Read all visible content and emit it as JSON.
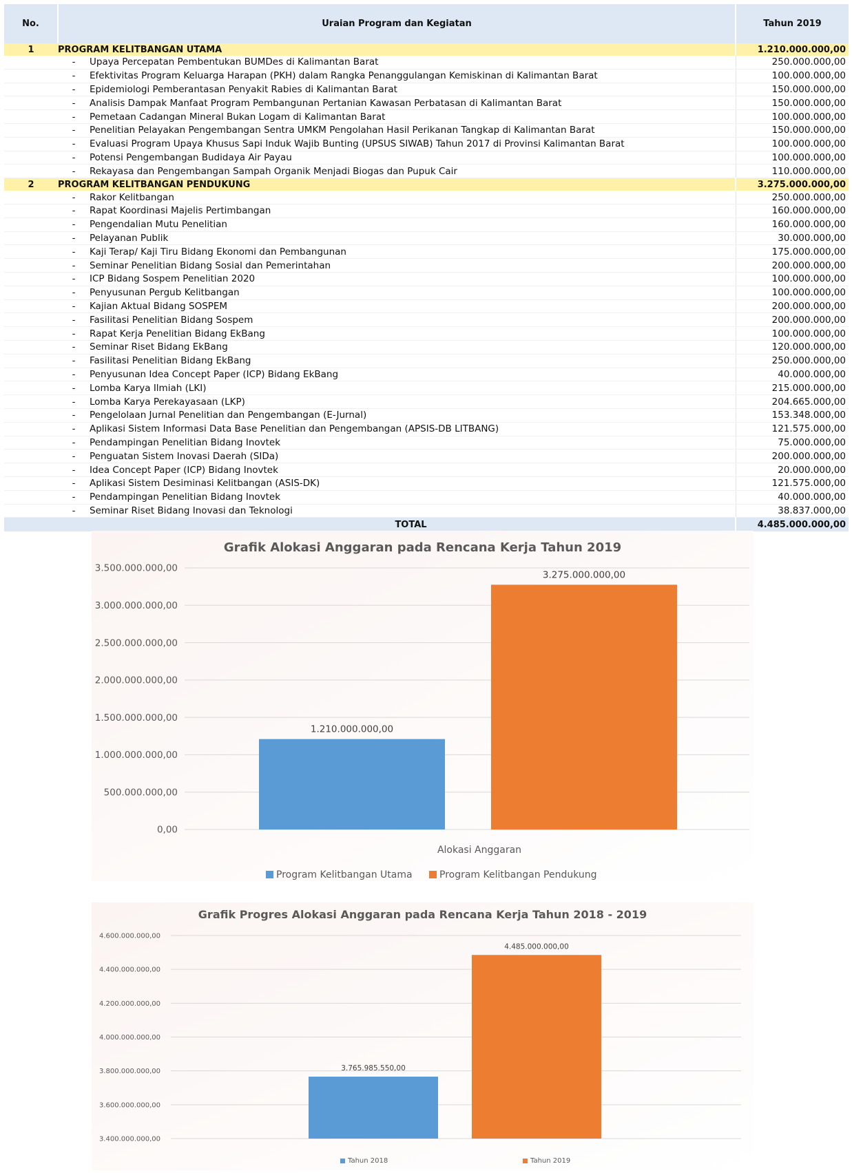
{
  "table": {
    "headers": {
      "no": "No.",
      "desc": "Uraian Program dan Kegiatan",
      "amount": "Tahun 2019"
    },
    "programs": [
      {
        "no": "1",
        "name": "PROGRAM KELITBANGAN UTAMA",
        "amount": "1.210.000.000,00",
        "items": [
          {
            "desc": "Upaya Percepatan Pembentukan BUMDes di Kalimantan Barat",
            "amount": "250.000.000,00"
          },
          {
            "desc": "Efektivitas Program Keluarga Harapan (PKH) dalam Rangka Penanggulangan Kemiskinan di Kalimantan Barat",
            "amount": "100.000.000,00"
          },
          {
            "desc": "Epidemiologi Pemberantasan Penyakit Rabies di Kalimantan Barat",
            "amount": "150.000.000,00"
          },
          {
            "desc": "Analisis Dampak Manfaat Program Pembangunan Pertanian Kawasan Perbatasan di Kalimantan Barat",
            "amount": "150.000.000,00"
          },
          {
            "desc": "Pemetaan Cadangan Mineral Bukan Logam di Kalimantan Barat",
            "amount": "100.000.000,00"
          },
          {
            "desc": "Penelitian Pelayakan Pengembangan Sentra UMKM Pengolahan Hasil Perikanan Tangkap di Kalimantan Barat",
            "amount": "150.000.000,00"
          },
          {
            "desc": "Evaluasi Program Upaya Khusus Sapi Induk Wajib Bunting (UPSUS SIWAB) Tahun 2017 di Provinsi Kalimantan Barat",
            "amount": "100.000.000,00"
          },
          {
            "desc": "Potensi Pengembangan Budidaya Air Payau",
            "amount": "100.000.000,00"
          },
          {
            "desc": "Rekayasa dan Pengembangan Sampah Organik Menjadi Biogas dan Pupuk Cair",
            "amount": "110.000.000,00"
          }
        ]
      },
      {
        "no": "2",
        "name": "PROGRAM KELITBANGAN PENDUKUNG",
        "amount": "3.275.000.000,00",
        "items": [
          {
            "desc": "Rakor Kelitbangan",
            "amount": "250.000.000,00"
          },
          {
            "desc": "Rapat Koordinasi Majelis Pertimbangan",
            "amount": "160.000.000,00"
          },
          {
            "desc": "Pengendalian Mutu Penelitian",
            "amount": "160.000.000,00"
          },
          {
            "desc": "Pelayanan Publik",
            "amount": "30.000.000,00"
          },
          {
            "desc": "Kaji Terap/ Kaji Tiru Bidang Ekonomi dan Pembangunan",
            "amount": "175.000.000,00"
          },
          {
            "desc": "Seminar Penelitian Bidang Sosial dan Pemerintahan",
            "amount": "200.000.000,00"
          },
          {
            "desc": "ICP Bidang Sospem Penelitian 2020",
            "amount": "100.000.000,00"
          },
          {
            "desc": "Penyusunan Pergub Kelitbangan",
            "amount": "100.000.000,00"
          },
          {
            "desc": "Kajian Aktual Bidang SOSPEM",
            "amount": "200.000.000,00"
          },
          {
            "desc": "Fasilitasi Penelitian Bidang Sospem",
            "amount": "200.000.000,00"
          },
          {
            "desc": "Rapat Kerja Penelitian Bidang EkBang",
            "amount": "100.000.000,00"
          },
          {
            "desc": "Seminar Riset Bidang EkBang",
            "amount": "120.000.000,00"
          },
          {
            "desc": "Fasilitasi Penelitian Bidang EkBang",
            "amount": "250.000.000,00"
          },
          {
            "desc": "Penyusunan Idea Concept Paper (ICP) Bidang EkBang",
            "amount": "40.000.000,00"
          },
          {
            "desc": "Lomba Karya Ilmiah (LKI)",
            "amount": "215.000.000,00"
          },
          {
            "desc": "Lomba Karya Perekayasaan (LKP)",
            "amount": "204.665.000,00"
          },
          {
            "desc": "Pengelolaan Jurnal Penelitian dan Pengembangan (E-Jurnal)",
            "amount": "153.348.000,00"
          },
          {
            "desc": "Aplikasi Sistem Informasi Data Base Penelitian dan Pengembangan (APSIS-DB LITBANG)",
            "amount": "121.575.000,00"
          },
          {
            "desc": "Pendampingan Penelitian Bidang Inovtek",
            "amount": "75.000.000,00"
          },
          {
            "desc": "Penguatan Sistem Inovasi Daerah (SIDa)",
            "amount": "200.000.000,00"
          },
          {
            "desc": "Idea Concept Paper (ICP) Bidang Inovtek",
            "amount": "20.000.000,00"
          },
          {
            "desc": "Aplikasi Sistem Desiminasi Kelitbangan (ASIS-DK)",
            "amount": "121.575.000,00"
          },
          {
            "desc": "Pendampingan Penelitian Bidang Inovtek",
            "amount": "40.000.000,00"
          },
          {
            "desc": "Seminar Riset Bidang Inovasi dan Teknologi",
            "amount": "38.837.000,00"
          }
        ]
      }
    ],
    "dash": "-",
    "total_label": "TOTAL",
    "total_amount": "4.485.000.000,00"
  },
  "chart_data": [
    {
      "type": "bar",
      "title": "Grafik Alokasi Anggaran pada Rencana Kerja Tahun 2019",
      "categories": [
        "Alokasi Anggaran"
      ],
      "xlabel": "Alokasi Anggaran",
      "ylabel": "",
      "ylim": [
        0,
        3500000000
      ],
      "ytick_values": [
        0,
        500000000,
        1000000000,
        1500000000,
        2000000000,
        2500000000,
        3000000000,
        3500000000
      ],
      "ytick_labels": [
        "0,00",
        "500.000.000,00",
        "1.000.000.000,00",
        "1.500.000.000,00",
        "2.000.000.000,00",
        "2.500.000.000,00",
        "3.000.000.000,00",
        "3.500.000.000,00"
      ],
      "series": [
        {
          "name": "Program Kelitbangan Utama",
          "values": [
            1210000000
          ],
          "label": "1.210.000.000,00",
          "color": "#5b9bd5"
        },
        {
          "name": "Program Kelitbangan Pendukung",
          "values": [
            3275000000
          ],
          "label": "3.275.000.000,00",
          "color": "#ed7d31"
        }
      ],
      "legend": "bottom",
      "grid": true
    },
    {
      "type": "bar",
      "title": "Grafik Progres Alokasi Anggaran pada Rencana Kerja Tahun 2018 - 2019",
      "categories": [
        ""
      ],
      "xlabel": "",
      "ylabel": "",
      "ylim": [
        3400000000,
        4600000000
      ],
      "ytick_values": [
        3400000000,
        3600000000,
        3800000000,
        4000000000,
        4200000000,
        4400000000,
        4600000000
      ],
      "ytick_labels": [
        "3.400.000.000,00",
        "3.600.000.000,00",
        "3.800.000.000,00",
        "4.000.000.000,00",
        "4.200.000.000,00",
        "4.400.000.000,00",
        "4.600.000.000,00"
      ],
      "series": [
        {
          "name": "Tahun 2018",
          "values": [
            3765985550
          ],
          "label": "3.765.985.550,00",
          "color": "#5b9bd5"
        },
        {
          "name": "Tahun 2019",
          "values": [
            4485000000
          ],
          "label": "4.485.000.000,00",
          "color": "#ed7d31"
        }
      ],
      "legend": "bottom",
      "grid": true
    }
  ]
}
